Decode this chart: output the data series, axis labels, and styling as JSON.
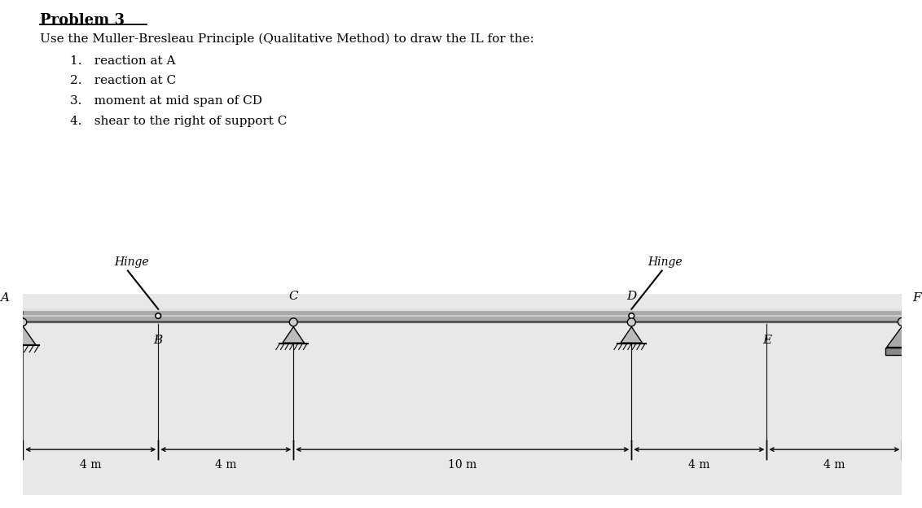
{
  "title": "Problem 3",
  "subtitle": "Use the Muller-Bresleau Principle (Qualitative Method) to draw the IL for the:",
  "items": [
    "reaction at A",
    "reaction at C",
    "moment at mid span of CD",
    "shear to the right of support C"
  ],
  "white_bg": "#ffffff",
  "diagram_bg": "#e8e8e8",
  "beam_color": "#999999",
  "beam_highlight": "#dddddd",
  "beam_shadow": "#555555",
  "text_color": "#000000",
  "nodes": {
    "A": 0.0,
    "B": 4.0,
    "C": 8.0,
    "D": 18.0,
    "E": 22.0,
    "F": 26.0
  },
  "spans": [
    "4 m",
    "4 m",
    "10 m",
    "4 m",
    "4 m"
  ],
  "xlim": [
    0,
    26
  ],
  "ylim": [
    -4.5,
    10.5
  ]
}
